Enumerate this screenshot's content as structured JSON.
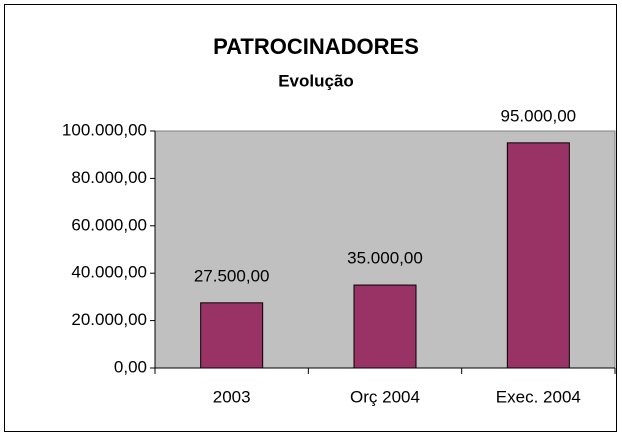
{
  "chart_data": {
    "type": "bar",
    "title": "PATROCINADORES",
    "subtitle": "Evolução",
    "categories": [
      "2003",
      "Orç 2004",
      "Exec. 2004"
    ],
    "values": [
      27500,
      35000,
      95000
    ],
    "value_labels": [
      "27.500,00",
      "35.000,00",
      "95.000,00"
    ],
    "color": "#993366",
    "ylim": [
      0,
      100000
    ],
    "yticks": [
      {
        "value": 0,
        "label": "0,00"
      },
      {
        "value": 20000,
        "label": "20.000,00"
      },
      {
        "value": 40000,
        "label": "40.000,00"
      },
      {
        "value": 60000,
        "label": "60.000,00"
      },
      {
        "value": 80000,
        "label": "80.000,00"
      },
      {
        "value": 100000,
        "label": "100.000,00"
      }
    ],
    "grid": false
  }
}
